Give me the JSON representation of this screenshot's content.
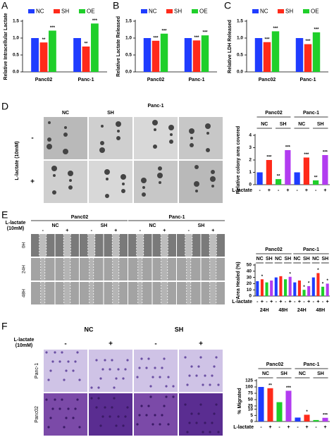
{
  "chart_data": [
    {
      "type": "bar",
      "panel": "A",
      "ylabel": "Relative Intracellular Lactate",
      "categories": [
        "Panc02",
        "Panc-1"
      ],
      "series": [
        {
          "name": "NC",
          "color": "#1f3cff",
          "values": [
            1.0,
            1.0
          ]
        },
        {
          "name": "SH",
          "color": "#ff2a1a",
          "values": [
            0.87,
            0.75
          ],
          "sig": [
            "**",
            "**"
          ]
        },
        {
          "name": "OE",
          "color": "#1fcf2a",
          "values": [
            1.22,
            1.43
          ],
          "sig": [
            "***",
            "***"
          ]
        }
      ],
      "ylim": [
        0,
        1.5
      ],
      "yticks": [
        {
          "value": 0,
          "label": "0.0"
        },
        0.5,
        {
          "value": 1,
          "label": "1.0"
        },
        1.5
      ]
    },
    {
      "type": "bar",
      "panel": "B",
      "ylabel": "Relative Lactate Released",
      "categories": [
        "Panc02",
        "Panc-1"
      ],
      "series": [
        {
          "name": "NC",
          "color": "#1f3cff",
          "values": [
            1.0,
            1.0
          ]
        },
        {
          "name": "SH",
          "color": "#ff2a1a",
          "values": [
            0.92,
            0.93
          ],
          "sig": [
            "***",
            "***"
          ]
        },
        {
          "name": "OE",
          "color": "#1fcf2a",
          "values": [
            1.13,
            1.08
          ],
          "sig": [
            "***",
            "***"
          ]
        }
      ],
      "ylim": [
        0,
        1.5
      ],
      "yticks": [
        {
          "value": 0,
          "label": "0.0"
        },
        0.5,
        {
          "value": 1,
          "label": "1.0"
        },
        1.5
      ]
    },
    {
      "type": "bar",
      "panel": "C",
      "ylabel": "Relative LDH Released",
      "categories": [
        "Panc02",
        "Panc-1"
      ],
      "series": [
        {
          "name": "NC",
          "color": "#1f3cff",
          "values": [
            1.0,
            1.0
          ]
        },
        {
          "name": "SH",
          "color": "#ff2a1a",
          "values": [
            0.88,
            0.82
          ],
          "sig": [
            "***",
            "***"
          ]
        },
        {
          "name": "OE",
          "color": "#1fcf2a",
          "values": [
            1.2,
            1.17
          ],
          "sig": [
            "***",
            "***"
          ]
        }
      ],
      "ylim": [
        0,
        1.5
      ],
      "yticks": [
        {
          "value": 0,
          "label": "0.0"
        },
        0.5,
        {
          "value": 1,
          "label": "1.0"
        },
        1.5
      ]
    },
    {
      "type": "bar",
      "panel": "D",
      "ylabel": "Relative colony area covered",
      "xlabel": "L-lactate",
      "groups": [
        "Panc02",
        "Panc-1"
      ],
      "subgroups": [
        "NC",
        "SH",
        "NC",
        "SH"
      ],
      "values": [
        1.0,
        2.0,
        0.45,
        2.8,
        1.0,
        2.2,
        0.35,
        2.4
      ],
      "colors": [
        "#1f3cff",
        "#ff2a1a",
        "#1fcf2a",
        "#b23cf0"
      ],
      "lactate": [
        "-",
        "+",
        "-",
        "+",
        "-",
        "+",
        "-",
        "+"
      ],
      "sig": [
        null,
        "***",
        "**",
        "***",
        null,
        "***",
        "**",
        "***"
      ],
      "ylim": [
        0,
        4
      ],
      "yticks": [
        0,
        1,
        2,
        3,
        4
      ]
    },
    {
      "type": "bar",
      "panel": "E",
      "ylabel": "Area Healed (%)",
      "xlabel": "L-lactate",
      "groups": [
        "Panc02",
        "Panc-1"
      ],
      "subgroups": [
        "NC",
        "SH",
        "NC",
        "SH",
        "NC",
        "SH",
        "NC",
        "SH"
      ],
      "times": [
        "24H",
        "48H",
        "24H",
        "48H"
      ],
      "values": [
        24,
        27,
        22,
        25,
        30,
        32,
        27,
        31,
        22,
        25,
        10,
        16,
        30,
        37,
        15,
        20
      ],
      "colors": [
        "#1f3cff",
        "#ff2a1a",
        "#1fcf2a",
        "#b23cf0"
      ],
      "lactate": [
        "-",
        "+",
        "-",
        "+",
        "-",
        "+",
        "-",
        "+",
        "-",
        "+",
        "-",
        "+",
        "-",
        "+",
        "-",
        "+"
      ],
      "sig": [
        null,
        "*",
        null,
        null,
        null,
        null,
        null,
        "*",
        null,
        null,
        "*",
        "*",
        null,
        "*",
        "*",
        "*"
      ],
      "ylim": [
        0,
        50
      ],
      "yticks": [
        0,
        10,
        20,
        30,
        40,
        50
      ]
    },
    {
      "type": "bar",
      "panel": "F",
      "ylabel": "% Migrated",
      "xlabel": "L-lactate",
      "groups": [
        "Panc02",
        "Panc-1"
      ],
      "subgroups": [
        "NC",
        "SH",
        "NC",
        "SH"
      ],
      "values": [
        100,
        95,
        40,
        85,
        3.2,
        5.5,
        1.2,
        3.0
      ],
      "colors": [
        "#1f3cff",
        "#ff2a1a",
        "#1fcf2a",
        "#b23cf0"
      ],
      "lactate": [
        "-",
        "+",
        "-",
        "+",
        "-",
        "+",
        "-",
        "+"
      ],
      "sig": [
        null,
        "**",
        null,
        "***",
        null,
        "*",
        null,
        "***"
      ],
      "ylim_segments": [
        [
          0,
          10
        ],
        [
          25,
          125
        ]
      ],
      "yticks": [
        0,
        5,
        10,
        25,
        50,
        75,
        100,
        125
      ]
    }
  ],
  "micrographs": {
    "D": {
      "header": "Panc-1",
      "columns": [
        "NC",
        "SH"
      ],
      "rows": [
        "-",
        "+"
      ],
      "side": "L-lactate (10mM)"
    },
    "E": {
      "groups": [
        "Panc02",
        "Panc-1"
      ],
      "columns": [
        "NC",
        "SH",
        "NC",
        "SH"
      ],
      "side": [
        "L-lactate",
        "(10mM)"
      ],
      "lactate": [
        "-",
        "+",
        "-",
        "+",
        "-",
        "+",
        "-",
        "+"
      ],
      "rows": [
        "0H",
        "24H",
        "48H"
      ]
    },
    "F": {
      "columns": [
        "NC",
        "SH"
      ],
      "side": [
        "L-lactate",
        "(10mM)"
      ],
      "lactate": [
        "-",
        "+",
        "-",
        "+"
      ],
      "rows": [
        "Panc-1",
        "Panc02"
      ]
    }
  }
}
